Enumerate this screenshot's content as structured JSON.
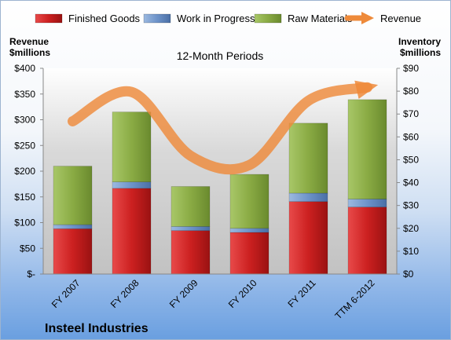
{
  "chart_data": {
    "type": "bar",
    "stacked": true,
    "subtitle": "12-Month Periods",
    "company": "Insteel Industries",
    "categories": [
      "FY 2007",
      "FY 2008",
      "FY 2009",
      "FY 2010",
      "FY 2011",
      "TTM 6-2012"
    ],
    "left_axis_label": [
      "Revenue",
      "$millions"
    ],
    "right_axis_label": [
      "Inventory",
      "$millions"
    ],
    "left_ticks": [
      "$-",
      "$50",
      "$100",
      "$150",
      "$200",
      "$250",
      "$300",
      "$350",
      "$400"
    ],
    "right_ticks": [
      "$0",
      "$10",
      "$20",
      "$30",
      "$40",
      "$50",
      "$60",
      "$70",
      "$80",
      "$90"
    ],
    "ylim_left": [
      0,
      400
    ],
    "ylim_right": [
      0,
      90
    ],
    "series": [
      {
        "name": "Finished Goods",
        "axis": "right",
        "color": "#cc2222",
        "values": [
          19.8,
          37.5,
          19.0,
          18.2,
          31.7,
          29.3
        ]
      },
      {
        "name": "Work in Progress",
        "axis": "right",
        "color": "#6d93c9",
        "values": [
          1.8,
          2.8,
          1.8,
          1.8,
          3.7,
          3.5
        ]
      },
      {
        "name": "Raw Materials",
        "axis": "right",
        "color": "#8fb04a",
        "values": [
          25.6,
          30.6,
          17.5,
          23.6,
          30.6,
          43.5
        ]
      }
    ],
    "line_series": {
      "name": "Revenue",
      "axis": "left",
      "color": "#ee8a3a",
      "values": [
        297,
        354,
        230,
        212,
        337,
        363
      ]
    },
    "grid": false,
    "legend": "top"
  }
}
